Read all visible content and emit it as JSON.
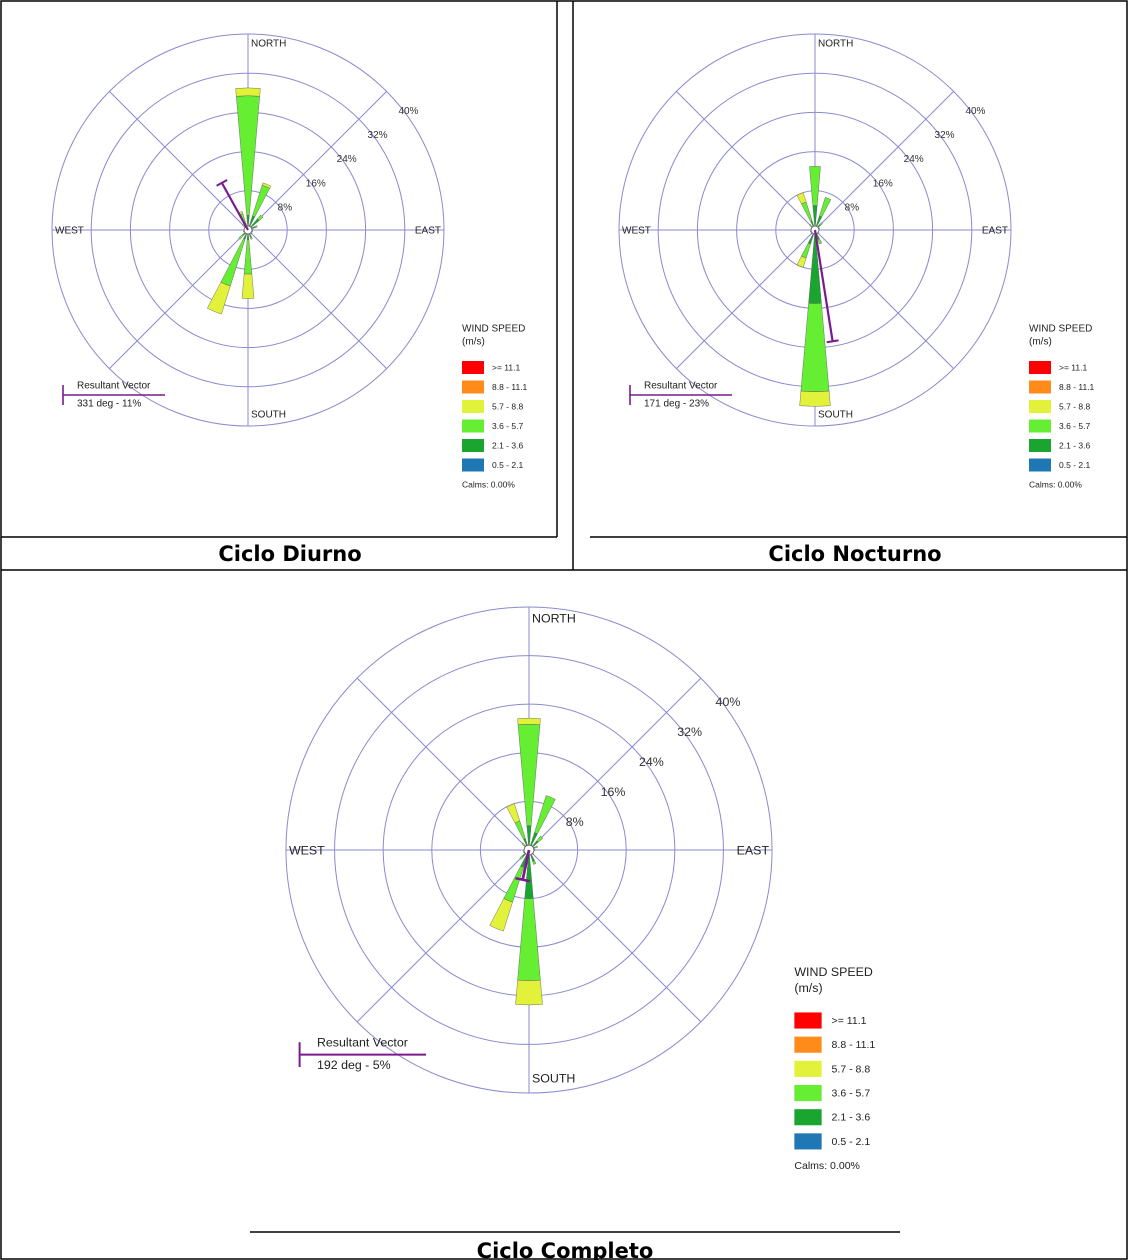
{
  "chart_data": [
    {
      "type": "windrose",
      "caption": "Ciclo Diurno",
      "categories": [
        "NORTH",
        null,
        null,
        null,
        "EAST",
        null,
        null,
        null,
        "SOUTH",
        null,
        null,
        null,
        "WEST",
        null,
        null,
        null
      ],
      "rlim": [
        0,
        40
      ],
      "rticks": [
        {
          "value": 8,
          "label": "8%"
        },
        {
          "value": 16,
          "label": "16%"
        },
        {
          "value": 24,
          "label": "24%"
        },
        {
          "value": 32,
          "label": "32%"
        },
        {
          "value": 40,
          "label": "40%"
        }
      ],
      "legend_title": "WIND SPEED",
      "legend_units": "(m/s)",
      "series": [
        {
          "name": ">= 11.1",
          "color": "#ff0000",
          "values": [
            0,
            0,
            0,
            0,
            0,
            0,
            0,
            0,
            0,
            0,
            0,
            0,
            0,
            0,
            0,
            0
          ]
        },
        {
          "name": "8.8 - 11.1",
          "color": "#ff8c1a",
          "values": [
            0,
            0,
            0,
            0,
            0,
            0,
            0,
            0,
            0,
            0,
            0,
            0,
            0,
            0,
            0,
            0
          ]
        },
        {
          "name": "5.7 - 8.8",
          "color": "#e2f23a",
          "values": [
            1.6,
            0.5,
            0,
            0,
            0,
            0,
            0,
            0,
            5,
            6,
            0,
            0,
            0,
            0,
            0,
            0.5
          ]
        },
        {
          "name": "3.6 - 5.7",
          "color": "#66ee33",
          "values": [
            24.4,
            6.6,
            1,
            0.5,
            0,
            0,
            0,
            0.5,
            7,
            10,
            1,
            0,
            0,
            0,
            0.5,
            2
          ]
        },
        {
          "name": "2.1 - 3.6",
          "color": "#1aa531",
          "values": [
            3,
            3,
            3,
            1.5,
            1,
            1,
            1,
            1.5,
            2,
            2,
            1.5,
            1,
            0.5,
            0.5,
            1,
            1.5
          ]
        },
        {
          "name": "0.5 - 2.1",
          "color": "#1f77b4",
          "values": [
            0,
            0,
            0,
            0,
            0,
            0,
            0,
            0,
            0,
            0,
            0,
            0,
            0,
            0,
            0,
            0
          ]
        }
      ],
      "calms": {
        "value": 0,
        "label": "Calms: 0.00%"
      },
      "resultant": {
        "title": "Resultant Vector",
        "direction": 331,
        "percent": 11,
        "label": "331 deg - 11%",
        "color": "#7a1a8c"
      }
    },
    {
      "type": "windrose",
      "caption": "Ciclo Nocturno",
      "categories": [
        "NORTH",
        null,
        null,
        null,
        "EAST",
        null,
        null,
        null,
        "SOUTH",
        null,
        null,
        null,
        "WEST",
        null,
        null,
        null
      ],
      "rlim": [
        0,
        40
      ],
      "rticks": [
        {
          "value": 8,
          "label": "8%"
        },
        {
          "value": 16,
          "label": "16%"
        },
        {
          "value": 24,
          "label": "24%"
        },
        {
          "value": 32,
          "label": "32%"
        },
        {
          "value": 40,
          "label": "40%"
        }
      ],
      "legend_title": "WIND SPEED",
      "legend_units": "(m/s)",
      "series": [
        {
          "name": ">= 11.1",
          "color": "#ff0000",
          "values": [
            0,
            0,
            0,
            0,
            0,
            0,
            0,
            0,
            0,
            0,
            0,
            0,
            0,
            0,
            0,
            0
          ]
        },
        {
          "name": "8.8 - 11.1",
          "color": "#ff8c1a",
          "values": [
            0,
            0,
            0,
            0,
            0,
            0,
            0,
            0,
            0,
            0,
            0,
            0,
            0,
            0,
            0,
            0
          ]
        },
        {
          "name": "5.7 - 8.8",
          "color": "#e2f23a",
          "values": [
            0,
            0,
            0,
            0,
            0,
            0,
            0,
            0,
            3,
            2,
            0,
            0,
            0,
            0,
            0,
            2
          ]
        },
        {
          "name": "3.6 - 5.7",
          "color": "#66ee33",
          "values": [
            8,
            4,
            0.5,
            0,
            0,
            0,
            0,
            1,
            18,
            3,
            0,
            0,
            0,
            0,
            0.5,
            4
          ]
        },
        {
          "name": "2.1 - 3.6",
          "color": "#1aa531",
          "values": [
            5,
            3,
            1.5,
            1,
            0.5,
            0.5,
            1,
            2,
            15,
            3,
            1,
            1,
            0.5,
            0.5,
            1,
            2
          ]
        },
        {
          "name": "0.5 - 2.1",
          "color": "#1f77b4",
          "values": [
            0,
            0,
            0,
            0,
            0,
            0,
            0,
            0,
            0,
            0,
            0,
            0,
            0,
            0,
            0,
            0
          ]
        }
      ],
      "calms": {
        "value": 0,
        "label": "Calms: 0.00%"
      },
      "resultant": {
        "title": "Resultant Vector",
        "direction": 171,
        "percent": 23,
        "label": "171 deg - 23%",
        "color": "#7a1a8c"
      }
    },
    {
      "type": "windrose",
      "caption": "Ciclo Completo",
      "categories": [
        "NORTH",
        null,
        null,
        null,
        "EAST",
        null,
        null,
        null,
        "SOUTH",
        null,
        null,
        null,
        "WEST",
        null,
        null,
        null
      ],
      "rlim": [
        0,
        40
      ],
      "rticks": [
        {
          "value": 8,
          "label": "8%"
        },
        {
          "value": 16,
          "label": "16%"
        },
        {
          "value": 24,
          "label": "24%"
        },
        {
          "value": 32,
          "label": "32%"
        },
        {
          "value": 40,
          "label": "40%"
        }
      ],
      "legend_title": "WIND SPEED",
      "legend_units": "(m/s)",
      "series": [
        {
          "name": ">= 11.1",
          "color": "#ff0000",
          "values": [
            0,
            0,
            0,
            0,
            0,
            0,
            0,
            0,
            0,
            0,
            0,
            0,
            0,
            0,
            0,
            0
          ]
        },
        {
          "name": "8.8 - 11.1",
          "color": "#ff8c1a",
          "values": [
            0,
            0,
            0,
            0,
            0,
            0,
            0,
            0,
            0,
            0,
            0,
            0,
            0,
            0,
            0,
            0
          ]
        },
        {
          "name": "5.7 - 8.8",
          "color": "#e2f23a",
          "values": [
            1,
            0,
            0,
            0,
            0,
            0,
            0,
            0,
            4,
            5,
            0,
            0,
            0,
            0,
            0,
            3
          ]
        },
        {
          "name": "3.6 - 5.7",
          "color": "#66ee33",
          "values": [
            16.7,
            6.4,
            1,
            0.5,
            0,
            0,
            0,
            0.5,
            13.5,
            6,
            0.5,
            0,
            0,
            0,
            0.5,
            3
          ]
        },
        {
          "name": "2.1 - 3.6",
          "color": "#1aa531",
          "values": [
            4,
            3,
            2,
            1,
            1,
            0.5,
            1,
            2,
            8,
            3,
            1.5,
            1,
            0.5,
            0.5,
            1,
            2
          ]
        },
        {
          "name": "0.5 - 2.1",
          "color": "#1f77b4",
          "values": [
            0,
            0,
            0,
            0,
            0,
            0,
            0,
            0,
            0,
            0,
            0,
            0,
            0,
            0,
            0,
            0
          ]
        }
      ],
      "calms": {
        "value": 0,
        "label": "Calms: 0.00%"
      },
      "resultant": {
        "title": "Resultant Vector",
        "direction": 192,
        "percent": 5,
        "label": "192 deg - 5%",
        "color": "#7a1a8c"
      }
    }
  ]
}
